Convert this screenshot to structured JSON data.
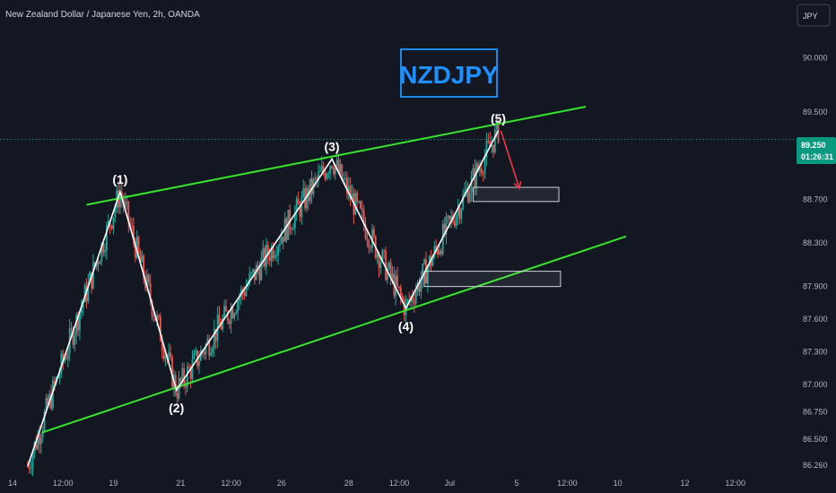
{
  "header": {
    "title": "New Zealand Dollar / Japanese Yen, 2h, OANDA",
    "currency_button": "JPY",
    "symbol_box": "NZDJPY"
  },
  "price_badge": {
    "price": "89.250",
    "countdown": "01:26:31",
    "color": "#089981"
  },
  "colors": {
    "background": "#131722",
    "up_candle": "#26a69a",
    "down_candle": "#ef5350",
    "channel_line": "#35e62b",
    "wave_line": "#ffffff",
    "projection_arrow": "#f23645",
    "symbol_color": "#1e90ff"
  },
  "chart_data": {
    "type": "candlestick",
    "title": "New Zealand Dollar / Japanese Yen, 2h, OANDA",
    "y_axis": {
      "labels": [
        "90.000",
        "89.500",
        "88.700",
        "88.300",
        "87.900",
        "87.600",
        "87.300",
        "87.000",
        "86.750",
        "86.500",
        "86.260"
      ],
      "values": [
        90.0,
        89.5,
        88.7,
        88.3,
        87.9,
        87.6,
        87.3,
        87.0,
        86.75,
        86.5,
        86.26
      ],
      "range": [
        86.17,
        90.2
      ],
      "position": "right"
    },
    "x_axis": {
      "labels": [
        "14",
        "12:00",
        "19",
        "21",
        "12:00",
        "26",
        "28",
        "12:00",
        "Jul",
        "5",
        "12:00",
        "10",
        "12",
        "12:00"
      ],
      "day_index": [
        0,
        6,
        12,
        20,
        26,
        32,
        40,
        46,
        52,
        60,
        66,
        72,
        80,
        86
      ],
      "range": [
        0,
        92
      ]
    },
    "current_price": 89.25,
    "grid": false,
    "wave_points": [
      {
        "label": "(1)",
        "x": 12.8,
        "y": 88.77
      },
      {
        "label": "(2)",
        "x": 19.5,
        "y": 86.95
      },
      {
        "label": "(3)",
        "x": 38.0,
        "y": 89.07
      },
      {
        "label": "(4)",
        "x": 46.8,
        "y": 87.7
      },
      {
        "label": "(5)",
        "x": 57.8,
        "y": 89.33
      }
    ],
    "wave_start": {
      "x": 1.8,
      "y": 86.25
    },
    "channel_upper": {
      "x1": 8.8,
      "y1": 88.65,
      "x2": 68.2,
      "y2": 89.55
    },
    "channel_lower": {
      "x1": 3.5,
      "y1": 86.56,
      "x2": 73.0,
      "y2": 88.36
    },
    "zones": [
      {
        "x1": 49.0,
        "x2": 65.2,
        "y1": 88.04,
        "y2": 87.9
      },
      {
        "x1": 54.8,
        "x2": 65.0,
        "y1": 88.81,
        "y2": 88.68
      }
    ],
    "projection": [
      {
        "x": 58.1,
        "y": 89.33
      },
      {
        "x": 60.3,
        "y": 88.8
      }
    ],
    "wave_labels_pos": [
      "above",
      "below",
      "above",
      "below",
      "above"
    ]
  }
}
